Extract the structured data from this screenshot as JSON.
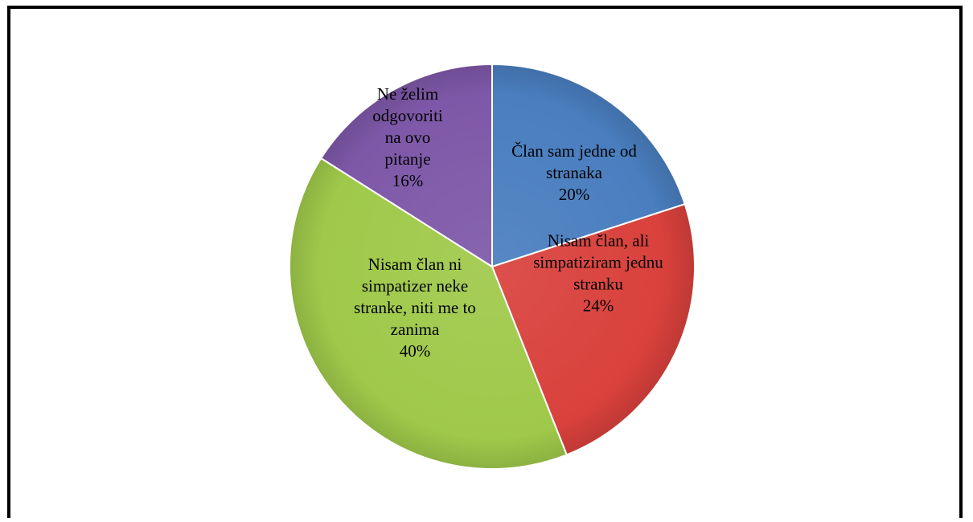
{
  "chart_data": {
    "type": "pie",
    "title": "",
    "slices": [
      {
        "label_lines": [
          "Član sam jedne od",
          "stranaka"
        ],
        "percent_label": "20%",
        "value": 20,
        "color": "#4a7ebf"
      },
      {
        "label_lines": [
          "Nisam član, ali",
          "simpatiziram jednu",
          "stranku"
        ],
        "percent_label": "24%",
        "value": 24,
        "color": "#d9413c"
      },
      {
        "label_lines": [
          "Nisam član ni",
          "simpatizer neke",
          "stranke, niti me to",
          "zanima"
        ],
        "percent_label": "40%",
        "value": 40,
        "color": "#9fc94a"
      },
      {
        "label_lines": [
          "Ne želim",
          "odgovoriti",
          "na ovo",
          "pitanje"
        ],
        "percent_label": "16%",
        "value": 16,
        "color": "#7e58a8"
      }
    ]
  }
}
